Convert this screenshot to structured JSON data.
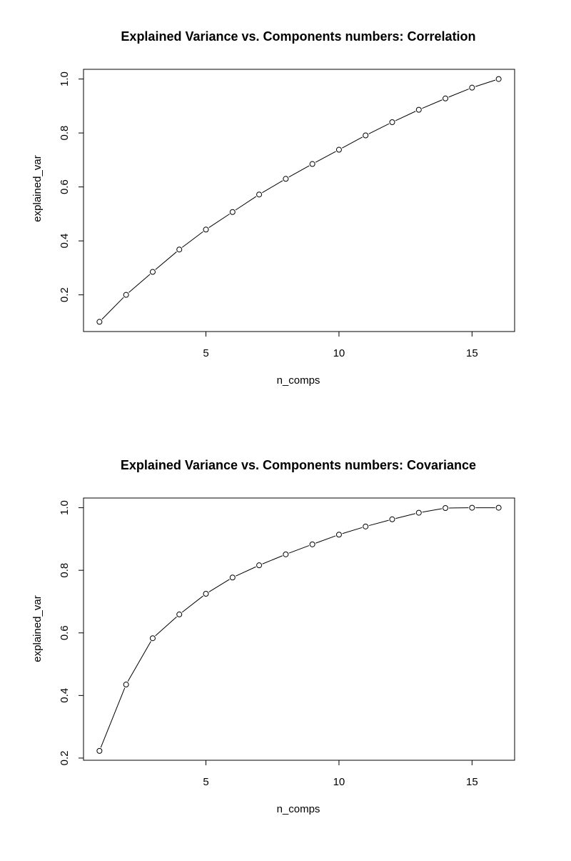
{
  "chart_data": [
    {
      "type": "line",
      "title": "Explained Variance vs. Components numbers: Correlation",
      "xlabel": "n_comps",
      "ylabel": "explained_var",
      "xlim": [
        0.4,
        16.6
      ],
      "ylim": [
        0.064,
        1.036
      ],
      "x_ticks": [
        5,
        10,
        15
      ],
      "y_ticks": [
        0.2,
        0.4,
        0.6,
        0.8,
        1.0
      ],
      "x_tick_labels": [
        "5",
        "10",
        "15"
      ],
      "y_tick_labels": [
        "0.2",
        "0.4",
        "0.6",
        "0.8",
        "1.0"
      ],
      "grid": false,
      "legend": "none",
      "marker": "open-circle",
      "series": [
        {
          "x": [
            1,
            2,
            3,
            4,
            5,
            6,
            7,
            8,
            9,
            10,
            11,
            12,
            13,
            14,
            15,
            16
          ],
          "values": [
            0.1,
            0.2,
            0.285,
            0.368,
            0.442,
            0.507,
            0.572,
            0.63,
            0.685,
            0.738,
            0.791,
            0.84,
            0.886,
            0.928,
            0.968,
            1.0
          ]
        }
      ]
    },
    {
      "type": "line",
      "title": "Explained Variance vs. Components numbers: Covariance",
      "xlabel": "n_comps",
      "ylabel": "explained_var",
      "xlim": [
        0.4,
        16.6
      ],
      "ylim": [
        0.193,
        1.031
      ],
      "x_ticks": [
        5,
        10,
        15
      ],
      "y_ticks": [
        0.2,
        0.4,
        0.6,
        0.8,
        1.0
      ],
      "x_tick_labels": [
        "5",
        "10",
        "15"
      ],
      "y_tick_labels": [
        "0.2",
        "0.4",
        "0.6",
        "0.8",
        "1.0"
      ],
      "grid": false,
      "legend": "none",
      "marker": "open-circle",
      "series": [
        {
          "x": [
            1,
            2,
            3,
            4,
            5,
            6,
            7,
            8,
            9,
            10,
            11,
            12,
            13,
            14,
            15,
            16
          ],
          "values": [
            0.223,
            0.435,
            0.583,
            0.659,
            0.725,
            0.777,
            0.816,
            0.851,
            0.883,
            0.914,
            0.94,
            0.963,
            0.984,
            0.999,
            1.0,
            1.0
          ]
        }
      ]
    }
  ]
}
